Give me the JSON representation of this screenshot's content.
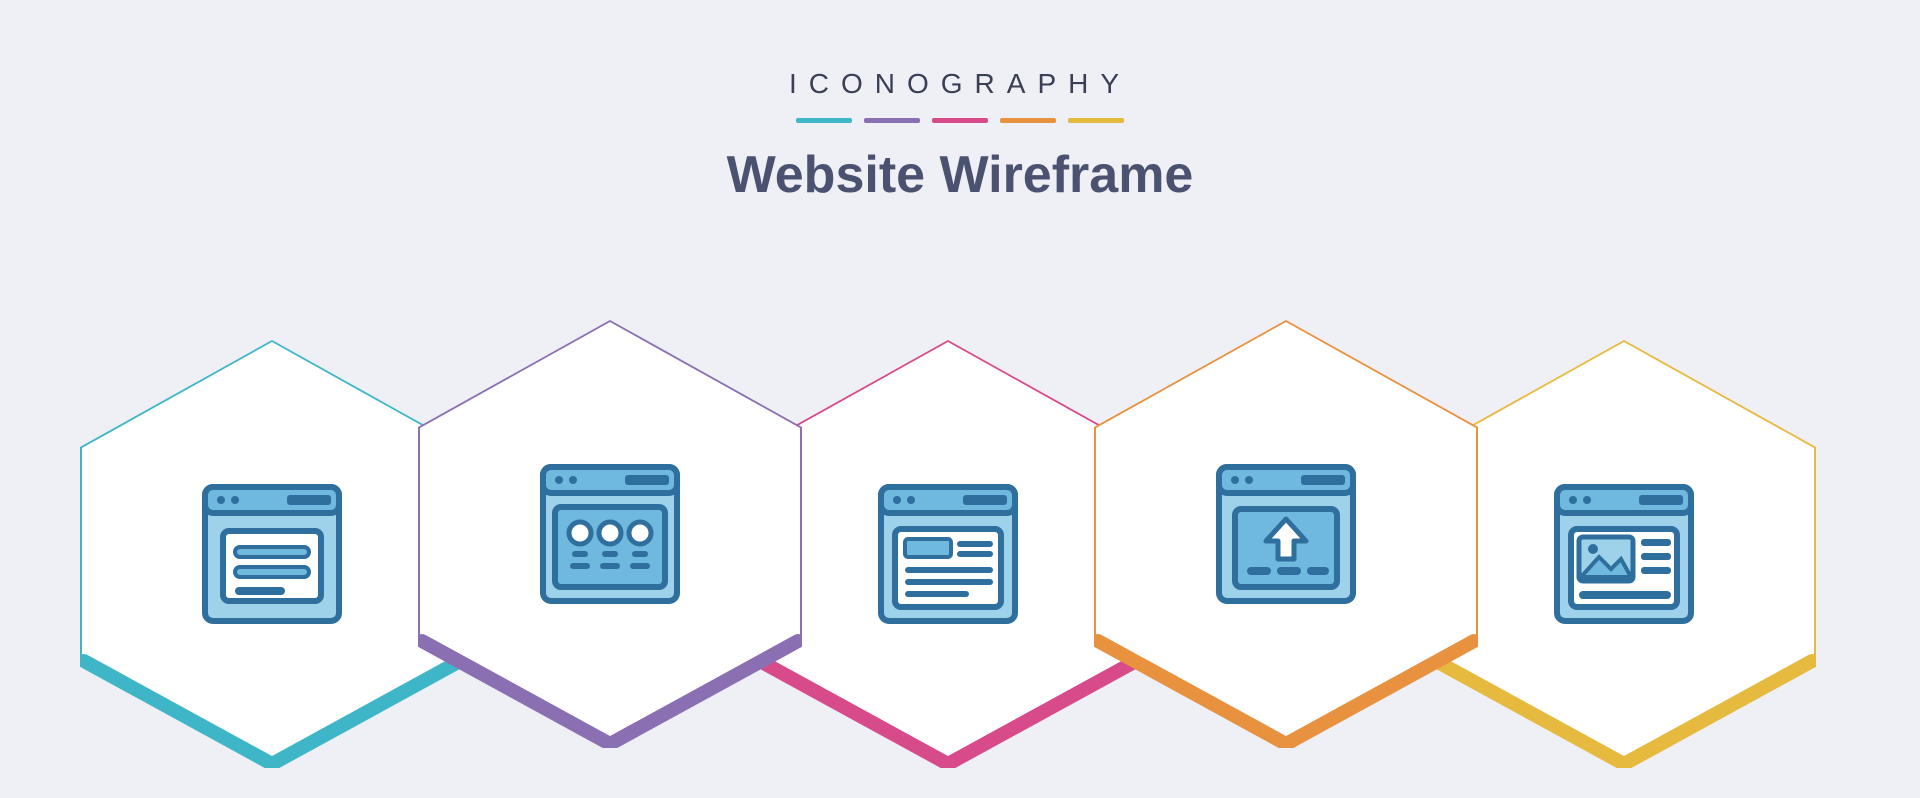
{
  "header": {
    "brand": "ICONOGRAPHY",
    "title": "Website Wireframe",
    "stripe_colors": [
      "#3fb6c8",
      "#8b6fb3",
      "#d84b8a",
      "#e8913f",
      "#e6b93f"
    ]
  },
  "icon_colors": {
    "stroke": "#2e6f9e",
    "fill_light": "#9ed1ea",
    "fill_mid": "#6fb8de"
  },
  "hexes": [
    {
      "accent": "#3fb6c8",
      "icon": "form-lines",
      "name": "wireframe-form-icon"
    },
    {
      "accent": "#8b6fb3",
      "icon": "profiles",
      "name": "wireframe-profiles-icon"
    },
    {
      "accent": "#d84b8a",
      "icon": "article",
      "name": "wireframe-article-icon"
    },
    {
      "accent": "#e8913f",
      "icon": "upload",
      "name": "wireframe-upload-icon"
    },
    {
      "accent": "#e6b93f",
      "icon": "image-text",
      "name": "wireframe-image-icon"
    }
  ]
}
